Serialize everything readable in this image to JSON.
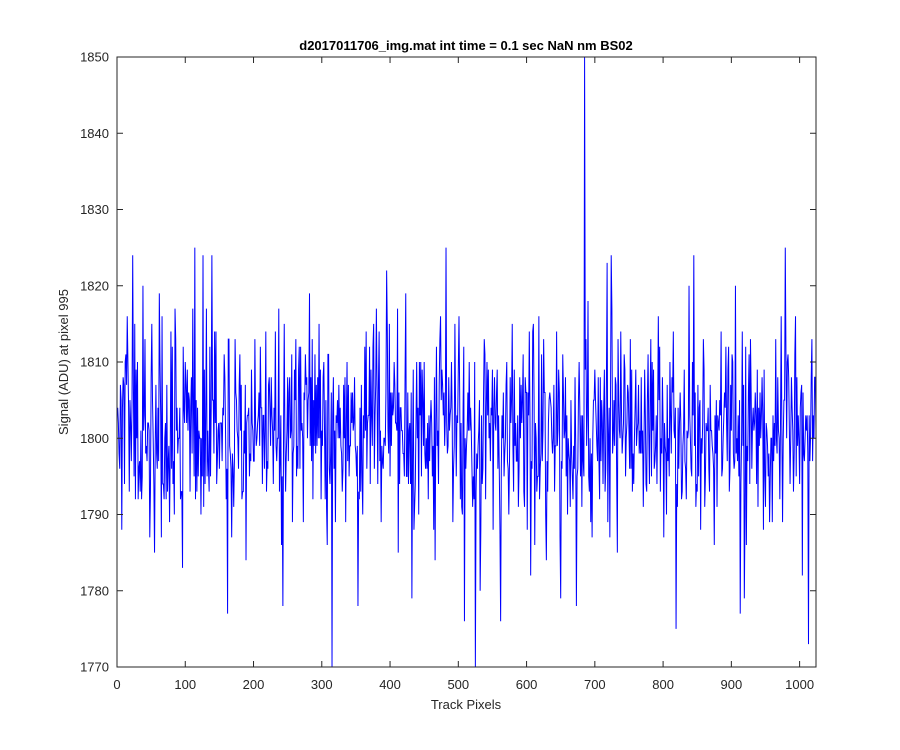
{
  "chart_data": {
    "type": "line",
    "title": "d2017011706_img.mat int time = 0.1 sec  NaN nm BS02",
    "xlabel": "Track Pixels",
    "ylabel": "Signal (ADU) at pixel 995",
    "xlim": [
      0,
      1024
    ],
    "ylim": [
      1770,
      1850
    ],
    "xticks": [
      0,
      100,
      200,
      300,
      400,
      500,
      600,
      700,
      800,
      900,
      1000
    ],
    "yticks": [
      1770,
      1780,
      1790,
      1800,
      1810,
      1820,
      1830,
      1840,
      1850
    ],
    "grid": false,
    "line_color": "#0000ff",
    "noise": {
      "baseline": 1801,
      "std": 7.5,
      "clip_min": 1770,
      "clip_max": 1850,
      "n_points": 1024,
      "spikes": [
        {
          "x": 684,
          "y": 1850
        },
        {
          "x": 314,
          "y": 1770
        },
        {
          "x": 524,
          "y": 1770
        },
        {
          "x": 22,
          "y": 1824
        },
        {
          "x": 113,
          "y": 1825
        },
        {
          "x": 138,
          "y": 1824
        },
        {
          "x": 161,
          "y": 1777
        },
        {
          "x": 242,
          "y": 1778
        },
        {
          "x": 431,
          "y": 1779
        },
        {
          "x": 481,
          "y": 1825
        },
        {
          "x": 561,
          "y": 1776
        },
        {
          "x": 672,
          "y": 1778
        },
        {
          "x": 723,
          "y": 1824
        },
        {
          "x": 818,
          "y": 1775
        },
        {
          "x": 844,
          "y": 1824
        },
        {
          "x": 912,
          "y": 1777
        },
        {
          "x": 978,
          "y": 1825
        },
        {
          "x": 1012,
          "y": 1773
        }
      ]
    }
  }
}
